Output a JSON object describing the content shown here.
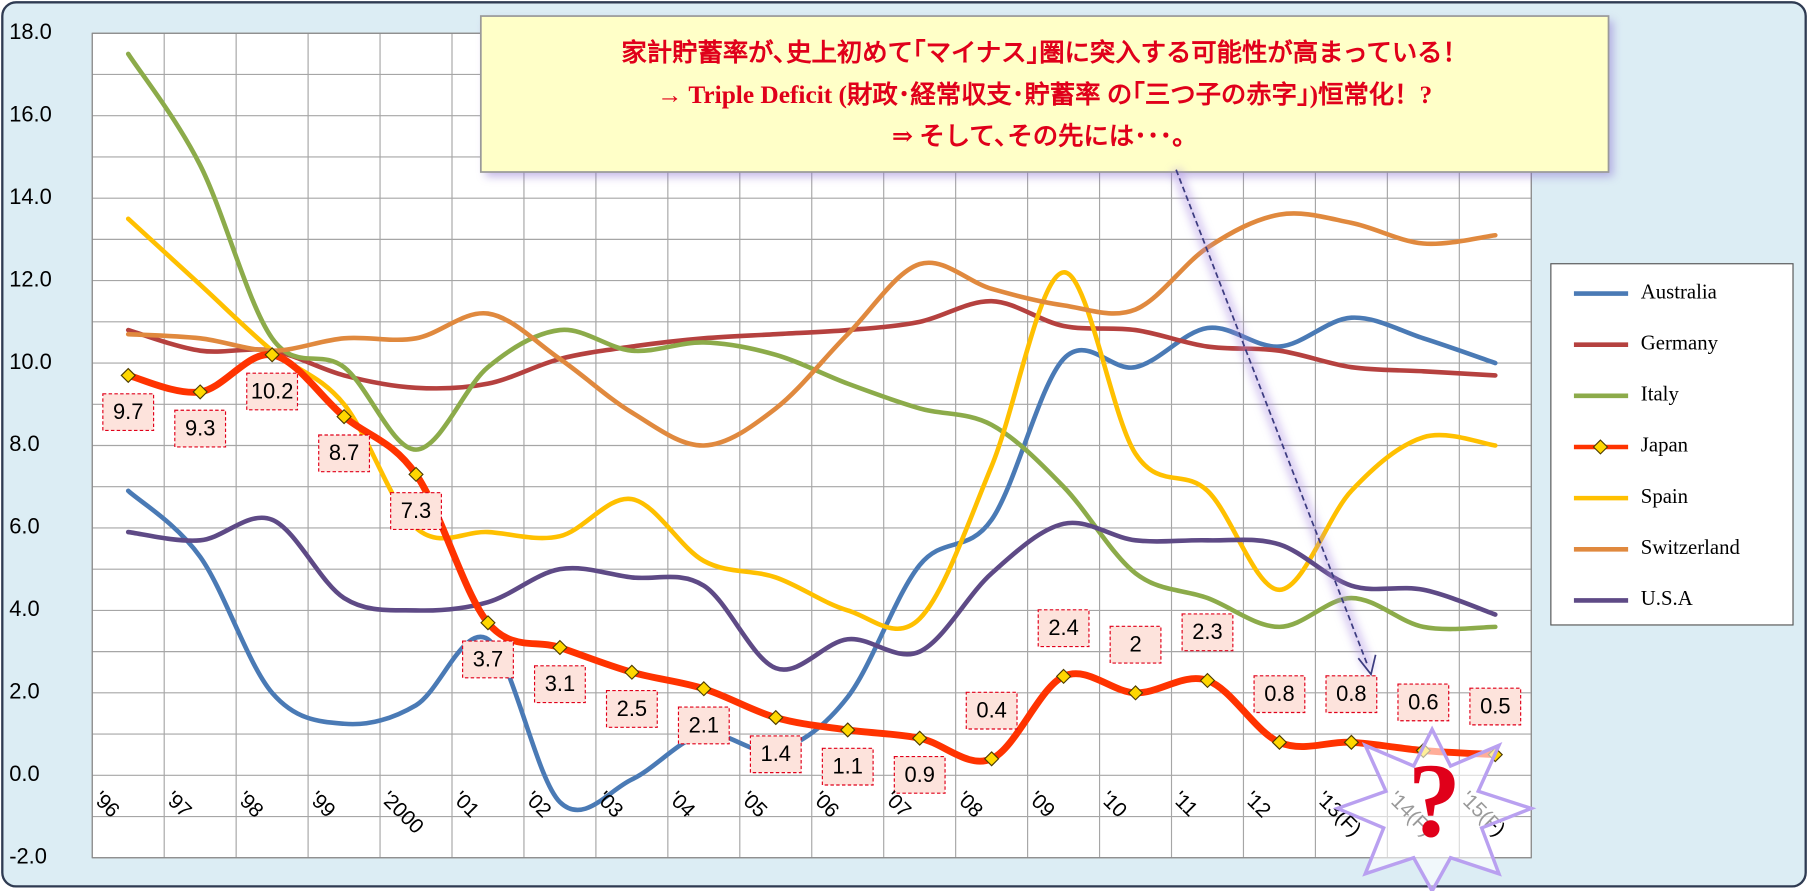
{
  "chart_data": {
    "type": "line",
    "categories": [
      "'96",
      "'97",
      "'98",
      "'99",
      "'2000",
      "'01",
      "'02",
      "'03",
      "'04",
      "'05",
      "'06",
      "'07",
      "'08",
      "'09",
      "'10",
      "'11",
      "'12",
      "'13(F)",
      "'14(F)",
      "'15(F)"
    ],
    "ylim": [
      -2,
      18
    ],
    "yticks": [
      {
        "value": -2,
        "label": "-2.0"
      },
      {
        "value": 0,
        "label": "0.0"
      },
      {
        "value": 2,
        "label": "2.0"
      },
      {
        "value": 4,
        "label": "4.0"
      },
      {
        "value": 6,
        "label": "6.0"
      },
      {
        "value": 8,
        "label": "8.0"
      },
      {
        "value": 10,
        "label": "10.0"
      },
      {
        "value": 12,
        "label": "12.0"
      },
      {
        "value": 14,
        "label": "14.0"
      },
      {
        "value": 16,
        "label": "16.0"
      },
      {
        "value": 18,
        "label": "18.0"
      }
    ],
    "grid": true,
    "legend": "right",
    "series": [
      {
        "name": "Australia",
        "color": "#4a7ab5",
        "values": [
          6.9,
          5.3,
          2.0,
          1.25,
          1.7,
          3.3,
          -0.65,
          -0.1,
          1.0,
          0.6,
          1.9,
          5.1,
          6.2,
          10.1,
          9.9,
          10.85,
          10.4,
          11.1,
          10.6,
          10.0
        ]
      },
      {
        "name": "Germany",
        "color": "#b5413f",
        "values": [
          10.8,
          10.3,
          10.3,
          9.7,
          9.4,
          9.5,
          10.1,
          10.4,
          10.6,
          10.7,
          10.8,
          11.0,
          11.5,
          10.9,
          10.8,
          10.4,
          10.3,
          9.9,
          9.8,
          9.7
        ]
      },
      {
        "name": "Italy",
        "color": "#8cab4a",
        "values": [
          17.5,
          14.8,
          10.6,
          9.9,
          7.9,
          9.9,
          10.8,
          10.3,
          10.5,
          10.2,
          9.5,
          8.9,
          8.5,
          7.0,
          4.9,
          4.3,
          3.6,
          4.3,
          3.6,
          3.6
        ]
      },
      {
        "name": "Japan",
        "color": "#ff3300",
        "values": [
          9.7,
          9.3,
          10.2,
          8.7,
          7.3,
          3.7,
          3.1,
          2.5,
          2.1,
          1.4,
          1.1,
          0.9,
          0.4,
          2.4,
          2.0,
          2.3,
          0.8,
          0.8,
          0.6,
          0.5
        ]
      },
      {
        "name": "Spain",
        "color": "#ffc000",
        "values": [
          13.5,
          11.9,
          10.3,
          9.0,
          6.0,
          5.9,
          5.8,
          6.7,
          5.2,
          4.8,
          4.0,
          3.8,
          7.5,
          12.2,
          7.8,
          6.9,
          4.5,
          6.9,
          8.2,
          8.0
        ]
      },
      {
        "name": "Switzerland",
        "color": "#e0893e",
        "values": [
          10.7,
          10.6,
          10.3,
          10.6,
          10.6,
          11.2,
          10.1,
          8.8,
          8.0,
          8.9,
          10.7,
          12.4,
          11.8,
          11.4,
          11.3,
          12.8,
          13.6,
          13.4,
          12.9,
          13.1
        ]
      },
      {
        "name": "U.S.A",
        "color": "#5e4a86",
        "values": [
          5.9,
          5.7,
          6.2,
          4.3,
          4.0,
          4.2,
          5.0,
          4.8,
          4.6,
          2.6,
          3.3,
          3.0,
          4.9,
          6.1,
          5.7,
          5.7,
          5.6,
          4.6,
          4.5,
          3.9
        ]
      }
    ],
    "annotations": [
      "家計貯蓄率が､史上初めて｢マイナス｣圏に突入する可能性が高まっている！",
      "→ Triple Deficit (財政･経常収支･貯蓄率 の｢三つ子の赤字｣)恒常化！?",
      "⇒ そして､その先には･･･。",
      "?"
    ]
  }
}
